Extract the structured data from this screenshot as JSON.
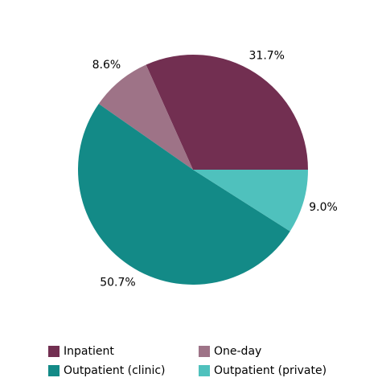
{
  "chart_data": {
    "type": "pie",
    "categories": [
      "Inpatient",
      "One-day",
      "Outpatient (clinic)",
      "Outpatient (private)"
    ],
    "values": [
      31.7,
      8.6,
      50.7,
      9.0
    ],
    "value_labels": [
      "31.7%",
      "8.6%",
      "50.7%",
      "9.0%"
    ],
    "colors": [
      "#722f51",
      "#9e7387",
      "#138a87",
      "#4fc1bd"
    ]
  }
}
